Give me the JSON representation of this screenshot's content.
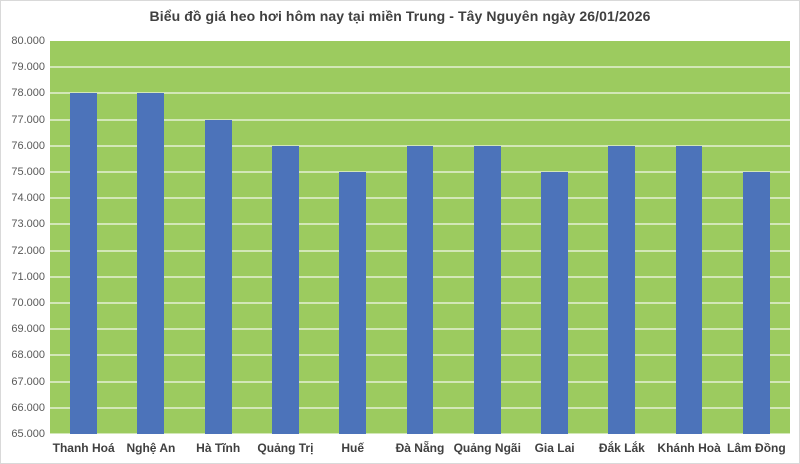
{
  "chart_data": {
    "type": "bar",
    "title": "Biểu đồ giá heo hơi hôm nay tại miền Trung - Tây Nguyên ngày 26/01/2026",
    "categories": [
      "Thanh Hoá",
      "Nghệ An",
      "Hà Tĩnh",
      "Quảng Trị",
      "Huế",
      "Đà Nẵng",
      "Quảng Ngãi",
      "Gia Lai",
      "Đắk Lắk",
      "Khánh Hoà",
      "Lâm Đồng"
    ],
    "values": [
      78000,
      78000,
      77000,
      76000,
      75000,
      76000,
      76000,
      75000,
      76000,
      76000,
      75000
    ],
    "xlabel": "",
    "ylabel": "",
    "ylim": [
      65000,
      80000
    ],
    "ytick_step": 1000,
    "ytick_labels": [
      "80.000",
      "79.000",
      "78.000",
      "77.000",
      "76.000",
      "75.000",
      "74.000",
      "73.000",
      "72.000",
      "71.000",
      "70.000",
      "69.000",
      "68.000",
      "67.000",
      "66.000",
      "65.000"
    ],
    "grid": true,
    "legend": false,
    "layout": {
      "legend_position": "none",
      "bar_width_fraction": 0.4
    },
    "colors": {
      "bar": "#4C73BA",
      "plot_background": "#9CCB5F",
      "gridline": "rgba(255,255,255,0.55)",
      "title_text": "#404040",
      "ytick_text": "#595959",
      "xtick_text": "#404040",
      "page_background": "#FFFFFF",
      "border": "#D9D9D9"
    }
  }
}
